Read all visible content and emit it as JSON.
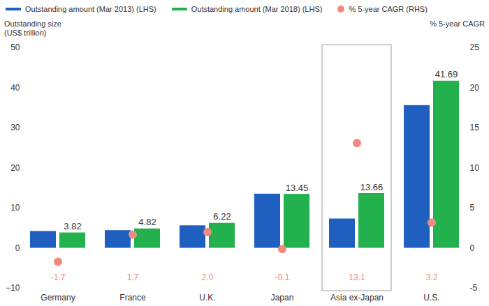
{
  "chart_data": {
    "type": "bar",
    "categories": [
      "Germany",
      "France",
      "U.K.",
      "Japan",
      "Asia ex-Japan",
      "U.S."
    ],
    "series": [
      {
        "name": "Outstanding amount (Mar 2013) (LHS)",
        "color": "#1f5fbf",
        "values": [
          4.2,
          4.4,
          5.6,
          13.5,
          7.3,
          35.6
        ]
      },
      {
        "name": "Outstanding amount (Mar 2018) (LHS)",
        "color": "#22b14c",
        "values": [
          3.82,
          4.82,
          6.22,
          13.45,
          13.66,
          41.69
        ],
        "data_labels": true
      },
      {
        "name": "% 5-year CAGR (RHS)",
        "type": "scatter",
        "marker": "circle",
        "color": "#f08a80",
        "axis": "y2",
        "data_labels": true,
        "values": [
          -1.7,
          1.7,
          2.0,
          -0.1,
          13.1,
          3.2
        ],
        "value_labels": [
          "-1.7",
          "1.7",
          "2.0",
          "-0.1",
          "13.1",
          "3.2"
        ]
      }
    ],
    "ylabel": "Outstanding size (US$ trillion)",
    "y2label": "% 5-year CAGR",
    "ylim": [
      -10,
      50
    ],
    "yticks": [
      -10,
      0,
      10,
      20,
      30,
      40,
      50
    ],
    "y2lim": [
      -5,
      25
    ],
    "y2ticks": [
      -5,
      0,
      5,
      10,
      15,
      20,
      25
    ],
    "legend": "top"
  }
}
